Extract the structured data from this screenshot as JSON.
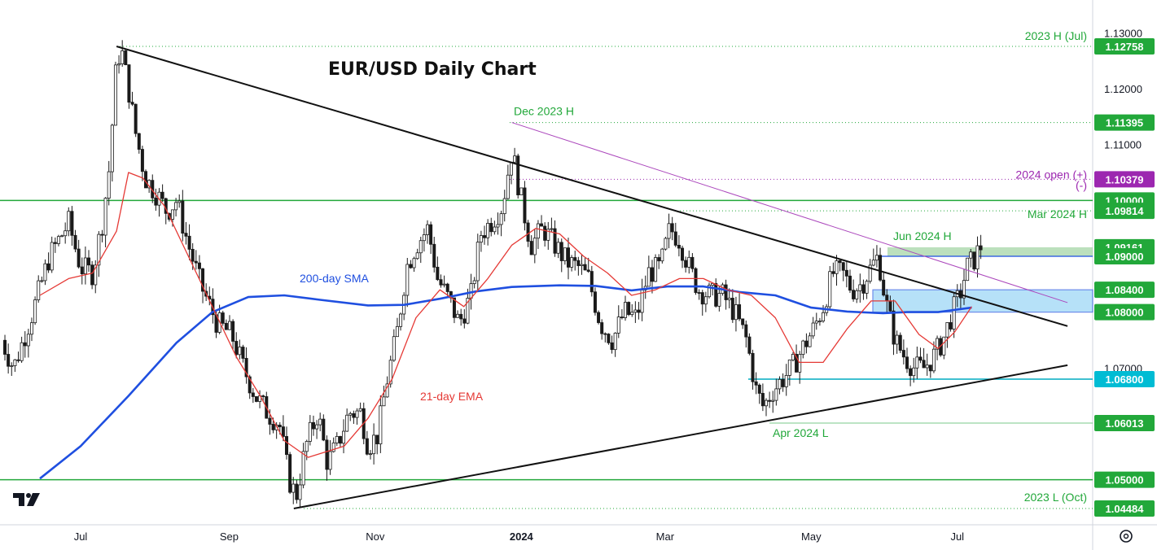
{
  "chart_data": {
    "type": "candlestick",
    "title": "EUR/USD Daily Chart",
    "ylim": [
      1.042,
      1.1335
    ],
    "y_ticks": [
      "1.13000",
      "1.12000",
      "1.11000",
      "1.07000"
    ],
    "x_ticks": [
      {
        "label": "Jul",
        "bold": false
      },
      {
        "label": "Sep",
        "bold": false
      },
      {
        "label": "Nov",
        "bold": false
      },
      {
        "label": "2024",
        "bold": true
      },
      {
        "label": "Mar",
        "bold": false
      },
      {
        "label": "May",
        "bold": false
      },
      {
        "label": "Jul",
        "bold": false
      }
    ],
    "x_tick_days": [
      0,
      62,
      123,
      184,
      244,
      305,
      366
    ],
    "price_badges": [
      {
        "label": "1.12758",
        "value": 1.12758,
        "color": "#22a83a"
      },
      {
        "label": "1.11395",
        "value": 1.11395,
        "color": "#22a83a"
      },
      {
        "label": "1.10379",
        "value": 1.10379,
        "color": "#9c27b0"
      },
      {
        "label": "1.10000",
        "value": 1.1,
        "color": "#22a83a"
      },
      {
        "label": "1.09814",
        "value": 1.09814,
        "color": "#22a83a"
      },
      {
        "label": "1.09161",
        "value": 1.09161,
        "color": "#22a83a"
      },
      {
        "label": "1.09000",
        "value": 1.09,
        "color": "#22a83a"
      },
      {
        "label": "1.08400",
        "value": 1.084,
        "color": "#22a83a"
      },
      {
        "label": "1.08000",
        "value": 1.08,
        "color": "#22a83a"
      },
      {
        "label": "1.06800",
        "value": 1.068,
        "color": "#00bcd4"
      },
      {
        "label": "1.06013",
        "value": 1.06013,
        "color": "#22a83a"
      },
      {
        "label": "1.05000",
        "value": 1.05,
        "color": "#22a83a"
      },
      {
        "label": "1.04484",
        "value": 1.04484,
        "color": "#22a83a"
      }
    ],
    "annotations": {
      "h2023": "2023 H (Jul)",
      "dec2023": "Dec 2023 H",
      "open2024": "2024 open (+)",
      "open2024_minus": "(-)",
      "mar2024": "Mar 2024 H",
      "jun2024": "Jun 2024 H",
      "sma200": "200-day SMA",
      "ema21": "21-day EMA",
      "apr2024": "Apr 2024 L",
      "l2023": "2023 L (Oct)"
    },
    "levels": {
      "h2023": 1.12758,
      "dec2023": 1.11395,
      "open2024": 1.10379,
      "round110": 1.1,
      "mar2024": 1.09814,
      "resist_top": 1.09161,
      "resist_bottom": 1.09,
      "zone_top": 1.084,
      "zone_bottom": 1.08,
      "support": 1.068,
      "apr2024": 1.06013,
      "round105": 1.05,
      "l2023": 1.04484
    },
    "trendlines": [
      {
        "name": "descending",
        "from": [
          15,
          1.12758
        ],
        "to": [
          412,
          1.0775
        ]
      },
      {
        "name": "ascending",
        "from": [
          89,
          1.04484
        ],
        "to": [
          412,
          1.0705
        ]
      },
      {
        "name": "dec-high",
        "from": [
          180,
          1.11395
        ],
        "to": [
          412,
          1.0817
        ]
      }
    ],
    "series": [
      {
        "name": "200-day SMA",
        "color": "#1f4fe0",
        "points": [
          [
            -17,
            1.0502
          ],
          [
            0,
            1.056
          ],
          [
            20,
            1.065
          ],
          [
            40,
            1.0745
          ],
          [
            55,
            1.08
          ],
          [
            70,
            1.0827
          ],
          [
            85,
            1.083
          ],
          [
            100,
            1.0822
          ],
          [
            120,
            1.0812
          ],
          [
            135,
            1.0813
          ],
          [
            150,
            1.0824
          ],
          [
            165,
            1.0837
          ],
          [
            180,
            1.0845
          ],
          [
            200,
            1.0848
          ],
          [
            215,
            1.0847
          ],
          [
            230,
            1.0839
          ],
          [
            245,
            1.0846
          ],
          [
            260,
            1.0846
          ],
          [
            275,
            1.0836
          ],
          [
            290,
            1.083
          ],
          [
            305,
            1.0808
          ],
          [
            320,
            1.0801
          ],
          [
            335,
            1.0798
          ],
          [
            345,
            1.08
          ],
          [
            358,
            1.08
          ],
          [
            372,
            1.0808
          ]
        ]
      },
      {
        "name": "21-day EMA",
        "color": "#e53935",
        "points": [
          [
            -17,
            1.083
          ],
          [
            -5,
            1.086
          ],
          [
            5,
            1.087
          ],
          [
            15,
            1.0945
          ],
          [
            20,
            1.105
          ],
          [
            26,
            1.104
          ],
          [
            35,
            1.099
          ],
          [
            45,
            1.09
          ],
          [
            55,
            1.081
          ],
          [
            65,
            1.072
          ],
          [
            75,
            1.065
          ],
          [
            85,
            1.057
          ],
          [
            95,
            1.054
          ],
          [
            110,
            1.056
          ],
          [
            120,
            1.061
          ],
          [
            130,
            1.068
          ],
          [
            140,
            1.079
          ],
          [
            150,
            1.084
          ],
          [
            160,
            1.081
          ],
          [
            170,
            1.086
          ],
          [
            180,
            1.092
          ],
          [
            190,
            1.095
          ],
          [
            200,
            1.094
          ],
          [
            210,
            1.09
          ],
          [
            220,
            1.087
          ],
          [
            230,
            1.083
          ],
          [
            240,
            1.084
          ],
          [
            250,
            1.086
          ],
          [
            260,
            1.086
          ],
          [
            270,
            1.084
          ],
          [
            280,
            1.083
          ],
          [
            290,
            1.079
          ],
          [
            300,
            1.071
          ],
          [
            310,
            1.071
          ],
          [
            320,
            1.077
          ],
          [
            330,
            1.082
          ],
          [
            340,
            1.082
          ],
          [
            350,
            1.076
          ],
          [
            358,
            1.0735
          ],
          [
            365,
            1.0765
          ],
          [
            372,
            1.081
          ]
        ]
      }
    ]
  }
}
